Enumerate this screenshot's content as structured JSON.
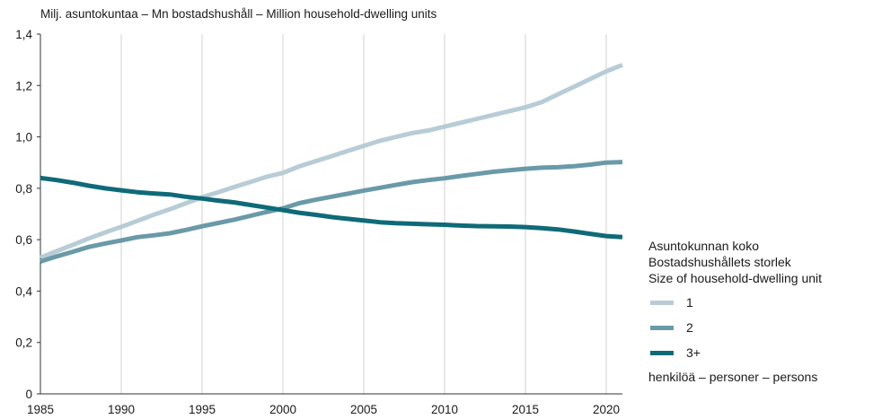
{
  "chart_data": {
    "type": "line",
    "ylabel": "Milj. asuntokuntaa – Mn bostadshushåll – Million household-dwelling units",
    "xlabel": "",
    "x": [
      1985,
      1986,
      1987,
      1988,
      1989,
      1990,
      1991,
      1992,
      1993,
      1994,
      1995,
      1996,
      1997,
      1998,
      1999,
      2000,
      2001,
      2002,
      2003,
      2004,
      2005,
      2006,
      2007,
      2008,
      2009,
      2010,
      2011,
      2012,
      2013,
      2014,
      2015,
      2016,
      2017,
      2018,
      2019,
      2020,
      2021
    ],
    "xlim": [
      1985,
      2021
    ],
    "ylim": [
      0,
      1.4
    ],
    "x_ticks": [
      "1985",
      "1990",
      "1995",
      "2000",
      "2005",
      "2010",
      "2015",
      "2020"
    ],
    "y_ticks": [
      "0",
      "0,2",
      "0,4",
      "0,6",
      "0,8",
      "1,0",
      "1,2",
      "1,4"
    ],
    "grid": "vertical",
    "series": [
      {
        "name": "1",
        "color": "#b7ccd6",
        "values": [
          0.53,
          0.555,
          0.58,
          0.605,
          0.628,
          0.65,
          0.673,
          0.697,
          0.718,
          0.742,
          0.765,
          0.785,
          0.805,
          0.825,
          0.845,
          0.86,
          0.885,
          0.905,
          0.925,
          0.945,
          0.965,
          0.985,
          1.0,
          1.015,
          1.025,
          1.04,
          1.055,
          1.07,
          1.085,
          1.1,
          1.115,
          1.135,
          1.165,
          1.195,
          1.225,
          1.255,
          1.28
        ]
      },
      {
        "name": "2",
        "color": "#6a9aa8",
        "values": [
          0.515,
          0.535,
          0.553,
          0.572,
          0.585,
          0.597,
          0.61,
          0.617,
          0.625,
          0.638,
          0.652,
          0.665,
          0.678,
          0.693,
          0.708,
          0.722,
          0.742,
          0.755,
          0.767,
          0.779,
          0.791,
          0.802,
          0.813,
          0.824,
          0.832,
          0.839,
          0.848,
          0.856,
          0.864,
          0.87,
          0.876,
          0.88,
          0.882,
          0.886,
          0.892,
          0.9,
          0.902
        ]
      },
      {
        "name": "3+",
        "color": "#0f6a78",
        "values": [
          0.84,
          0.832,
          0.822,
          0.81,
          0.8,
          0.792,
          0.785,
          0.78,
          0.776,
          0.767,
          0.76,
          0.752,
          0.745,
          0.735,
          0.725,
          0.715,
          0.705,
          0.697,
          0.688,
          0.681,
          0.675,
          0.668,
          0.664,
          0.662,
          0.66,
          0.658,
          0.655,
          0.653,
          0.652,
          0.651,
          0.649,
          0.645,
          0.64,
          0.632,
          0.623,
          0.614,
          0.61
        ]
      }
    ]
  },
  "legend": {
    "title_lines": [
      "Asuntokunnan koko",
      "Bostadshushållets storlek",
      "Size of household-dwelling unit"
    ],
    "unit_note": "henkilöä – personer – persons"
  }
}
